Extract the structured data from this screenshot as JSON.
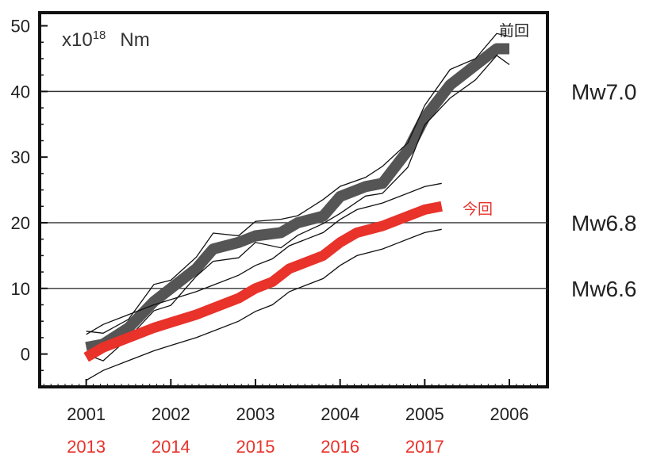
{
  "chart_data": {
    "type": "line",
    "unit_label": {
      "prefix": "x10",
      "exponent": "18",
      "unit": "Nm"
    },
    "y_ticks": [
      0,
      10,
      20,
      30,
      40,
      50
    ],
    "ylim": [
      -5,
      52
    ],
    "x_ticks_top": [
      "2001",
      "2002",
      "2003",
      "2004",
      "2005",
      "2006"
    ],
    "x_ticks_bottom": [
      "2013",
      "2014",
      "2015",
      "2016",
      "2017"
    ],
    "xlim": [
      2000.45,
      2006.45
    ],
    "grid": "horizontal lines at 10, 20, 40",
    "reference_lines": [
      {
        "label": "Mw6.6",
        "y": 10
      },
      {
        "label": "Mw6.8",
        "y": 20
      },
      {
        "label": "Mw7.0",
        "y": 40
      }
    ],
    "series": [
      {
        "name": "前回",
        "color": "#555555",
        "x": [
          2001.0,
          2001.2,
          2001.5,
          2001.8,
          2002.0,
          2002.3,
          2002.5,
          2002.8,
          2003.0,
          2003.3,
          2003.5,
          2003.8,
          2004.0,
          2004.3,
          2004.5,
          2004.8,
          2005.0,
          2005.3,
          2005.6,
          2005.85,
          2006.0
        ],
        "y": [
          1,
          1.5,
          4,
          8,
          10,
          13,
          16,
          17,
          18,
          18.5,
          20,
          21,
          24,
          25.5,
          26,
          31,
          36,
          41,
          44,
          46.5,
          46.5
        ]
      },
      {
        "name": "今回",
        "color": "#e8322a",
        "x": [
          2001.0,
          2001.2,
          2001.5,
          2001.8,
          2002.0,
          2002.3,
          2002.5,
          2002.8,
          2003.0,
          2003.2,
          2003.4,
          2003.6,
          2003.8,
          2004.0,
          2004.2,
          2004.5,
          2004.7,
          2005.0,
          2005.2
        ],
        "y": [
          -0.5,
          1,
          2.5,
          4,
          4.8,
          6,
          7,
          8.5,
          10,
          11,
          13,
          14,
          15,
          17,
          18.5,
          19.5,
          20.5,
          22,
          22.5
        ]
      }
    ]
  }
}
